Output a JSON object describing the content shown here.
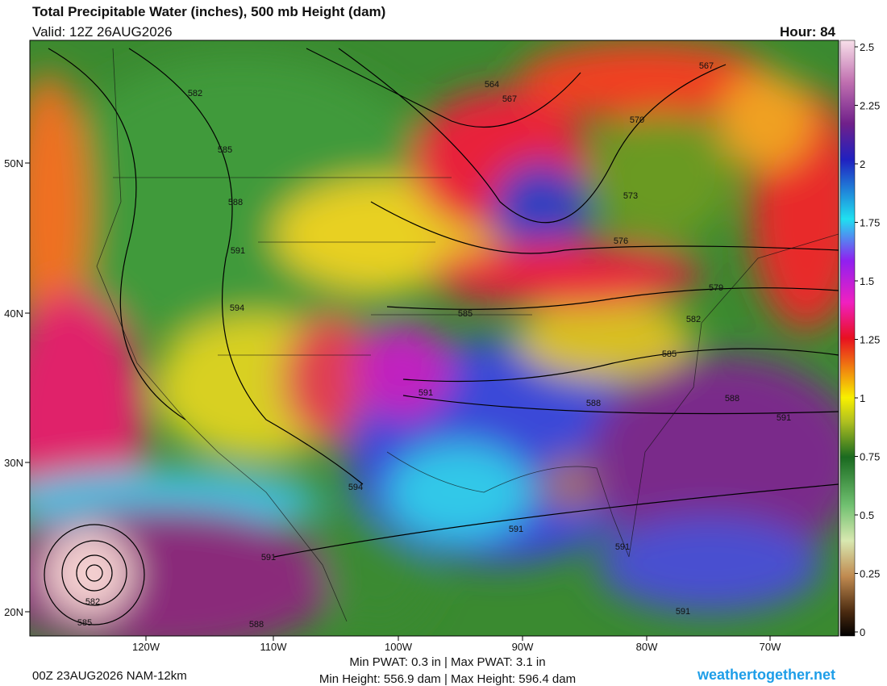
{
  "header": {
    "title": "Total Precipitable Water (inches), 500 mb Height (dam)",
    "valid": "Valid: 12Z 26AUG2026",
    "hour": "Hour: 84"
  },
  "map": {
    "lat_labels": [
      "50N",
      "40N",
      "30N",
      "20N"
    ],
    "lon_labels": [
      "120W",
      "110W",
      "100W",
      "90W",
      "80W",
      "70W"
    ],
    "contour_labels": [
      "582",
      "585",
      "588",
      "591",
      "594",
      "564",
      "567",
      "567",
      "570",
      "573",
      "576",
      "579",
      "582",
      "585",
      "585",
      "588",
      "588",
      "591",
      "591",
      "594",
      "591",
      "591",
      "591",
      "591",
      "588",
      "582",
      "585"
    ]
  },
  "colorbar": {
    "lim": [
      0,
      2.5
    ],
    "ticks": [
      0,
      0.25,
      0.5,
      0.75,
      1,
      1.25,
      1.5,
      1.75,
      2,
      2.25,
      2.5
    ]
  },
  "footer": {
    "run": "00Z 23AUG2026 NAM-12km",
    "pwat": "Min PWAT:   0.3 in | Max PWAT:   3.1 in",
    "height": "Min Height: 556.9 dam | Max Height: 596.4 dam",
    "site": "weathertogether.net"
  }
}
